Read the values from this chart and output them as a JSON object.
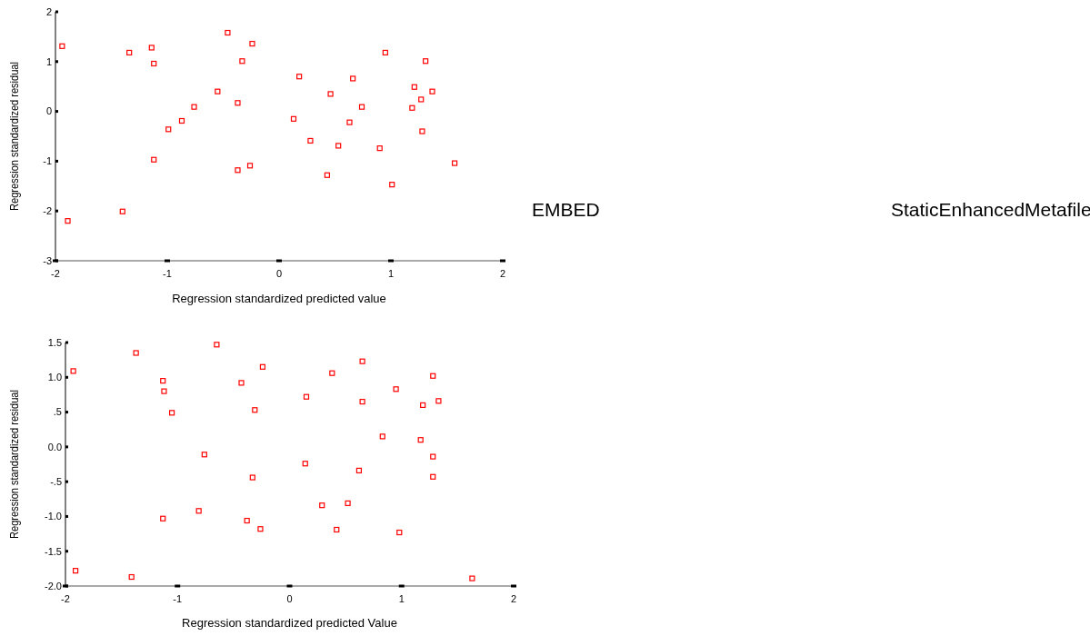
{
  "chart_data": [
    {
      "type": "scatter",
      "xlabel": "Regression standardized predicted value",
      "ylabel": "Regression standardized residual",
      "marker": "square",
      "grid": false,
      "xlim": [
        -2,
        2
      ],
      "xticks": [
        -2,
        -1,
        0,
        1,
        2
      ],
      "ylim": [
        -3,
        2
      ],
      "yticks": [
        -3,
        -2,
        -1,
        0,
        1,
        2
      ],
      "series": [
        {
          "color": "#ff0000",
          "x": [
            -1.94,
            -1.34,
            -1.14,
            -1.12,
            -1.12,
            -0.99,
            -0.87,
            -0.76,
            -0.55,
            -0.46,
            -0.37,
            -0.33,
            -0.24,
            -0.37,
            -0.26,
            -1.4,
            -1.89,
            0.95,
            1.31,
            0.18,
            0.66,
            1.21,
            1.37,
            0.46,
            1.27,
            0.74,
            1.19,
            0.13,
            0.63,
            1.28,
            0.28,
            0.53,
            0.9,
            1.57,
            0.43,
            1.01
          ],
          "values": [
            1.31,
            1.18,
            1.28,
            0.96,
            -0.97,
            -0.36,
            -0.19,
            0.09,
            0.4,
            1.58,
            0.17,
            1.01,
            1.36,
            -1.18,
            -1.09,
            -2.01,
            -2.2,
            1.18,
            1.01,
            0.7,
            0.66,
            0.49,
            0.4,
            0.35,
            0.24,
            0.09,
            0.07,
            -0.15,
            -0.22,
            -0.4,
            -0.59,
            -0.69,
            -0.74,
            -1.04,
            -1.28,
            -1.47
          ]
        }
      ]
    },
    {
      "type": "scatter",
      "xlabel": "Regression standardized predicted Value",
      "ylabel": "Regression standardized residual",
      "marker": "square",
      "grid": false,
      "xlim": [
        -2,
        2
      ],
      "xticks": [
        -2,
        -1,
        0,
        1,
        2
      ],
      "ylim": [
        -2,
        1.5
      ],
      "yticks": [
        {
          "value": -2,
          "label": "-2.0"
        },
        -1.5,
        {
          "value": -1,
          "label": "-1.0"
        },
        {
          "value": -0.5,
          "label": "-.5"
        },
        {
          "value": 0,
          "label": "0.0"
        },
        {
          "value": 0.5,
          "label": ".5"
        },
        {
          "value": 1,
          "label": "1.0"
        },
        1.5
      ],
      "series": [
        {
          "color": "#ff0000",
          "x": [
            -1.93,
            -1.37,
            -0.65,
            -0.24,
            -1.13,
            -0.43,
            -1.12,
            -1.05,
            -0.31,
            -0.76,
            -0.33,
            -0.81,
            -1.13,
            -0.38,
            -0.26,
            -1.91,
            -1.41,
            0.65,
            0.38,
            1.28,
            0.95,
            0.15,
            0.65,
            1.33,
            1.19,
            0.83,
            1.17,
            1.28,
            0.14,
            0.62,
            1.28,
            0.52,
            0.29,
            0.42,
            0.98,
            1.63
          ],
          "values": [
            1.09,
            1.35,
            1.47,
            1.15,
            0.95,
            0.92,
            0.8,
            0.49,
            0.53,
            -0.11,
            -0.44,
            -0.92,
            -1.03,
            -1.06,
            -1.18,
            -1.78,
            -1.87,
            1.23,
            1.06,
            1.02,
            0.83,
            0.72,
            0.65,
            0.66,
            0.6,
            0.15,
            0.1,
            -0.14,
            -0.24,
            -0.34,
            -0.43,
            -0.81,
            -0.84,
            -1.19,
            -1.23,
            -1.89
          ]
        }
      ]
    },
    {
      "type": "other",
      "annotations": [
        "EMBED",
        "StaticEnhancedMetafile"
      ]
    }
  ]
}
